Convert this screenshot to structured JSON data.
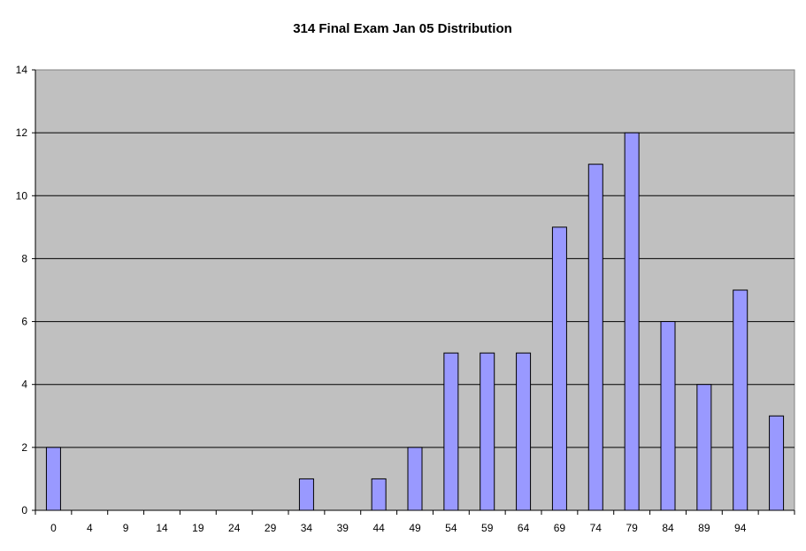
{
  "chart_data": {
    "type": "bar",
    "title": "314 Final Exam Jan 05 Distribution",
    "xlabel": "",
    "ylabel": "",
    "categories": [
      "0",
      "4",
      "9",
      "14",
      "19",
      "24",
      "29",
      "34",
      "39",
      "44",
      "49",
      "54",
      "59",
      "64",
      "69",
      "74",
      "79",
      "84",
      "89",
      "94",
      ""
    ],
    "values": [
      2,
      0,
      0,
      0,
      0,
      0,
      0,
      1,
      0,
      1,
      2,
      5,
      5,
      5,
      9,
      11,
      12,
      6,
      4,
      7,
      3
    ],
    "ylim": [
      0,
      14
    ],
    "yticks": [
      "0",
      "2",
      "4",
      "6",
      "8",
      "10",
      "12",
      "14"
    ],
    "grid": true,
    "legend": "none",
    "colors": {
      "plot_background": "#c0c0c0",
      "bar_fill": "#9999ff",
      "bar_stroke": "#000000",
      "gridline": "#000000"
    }
  }
}
